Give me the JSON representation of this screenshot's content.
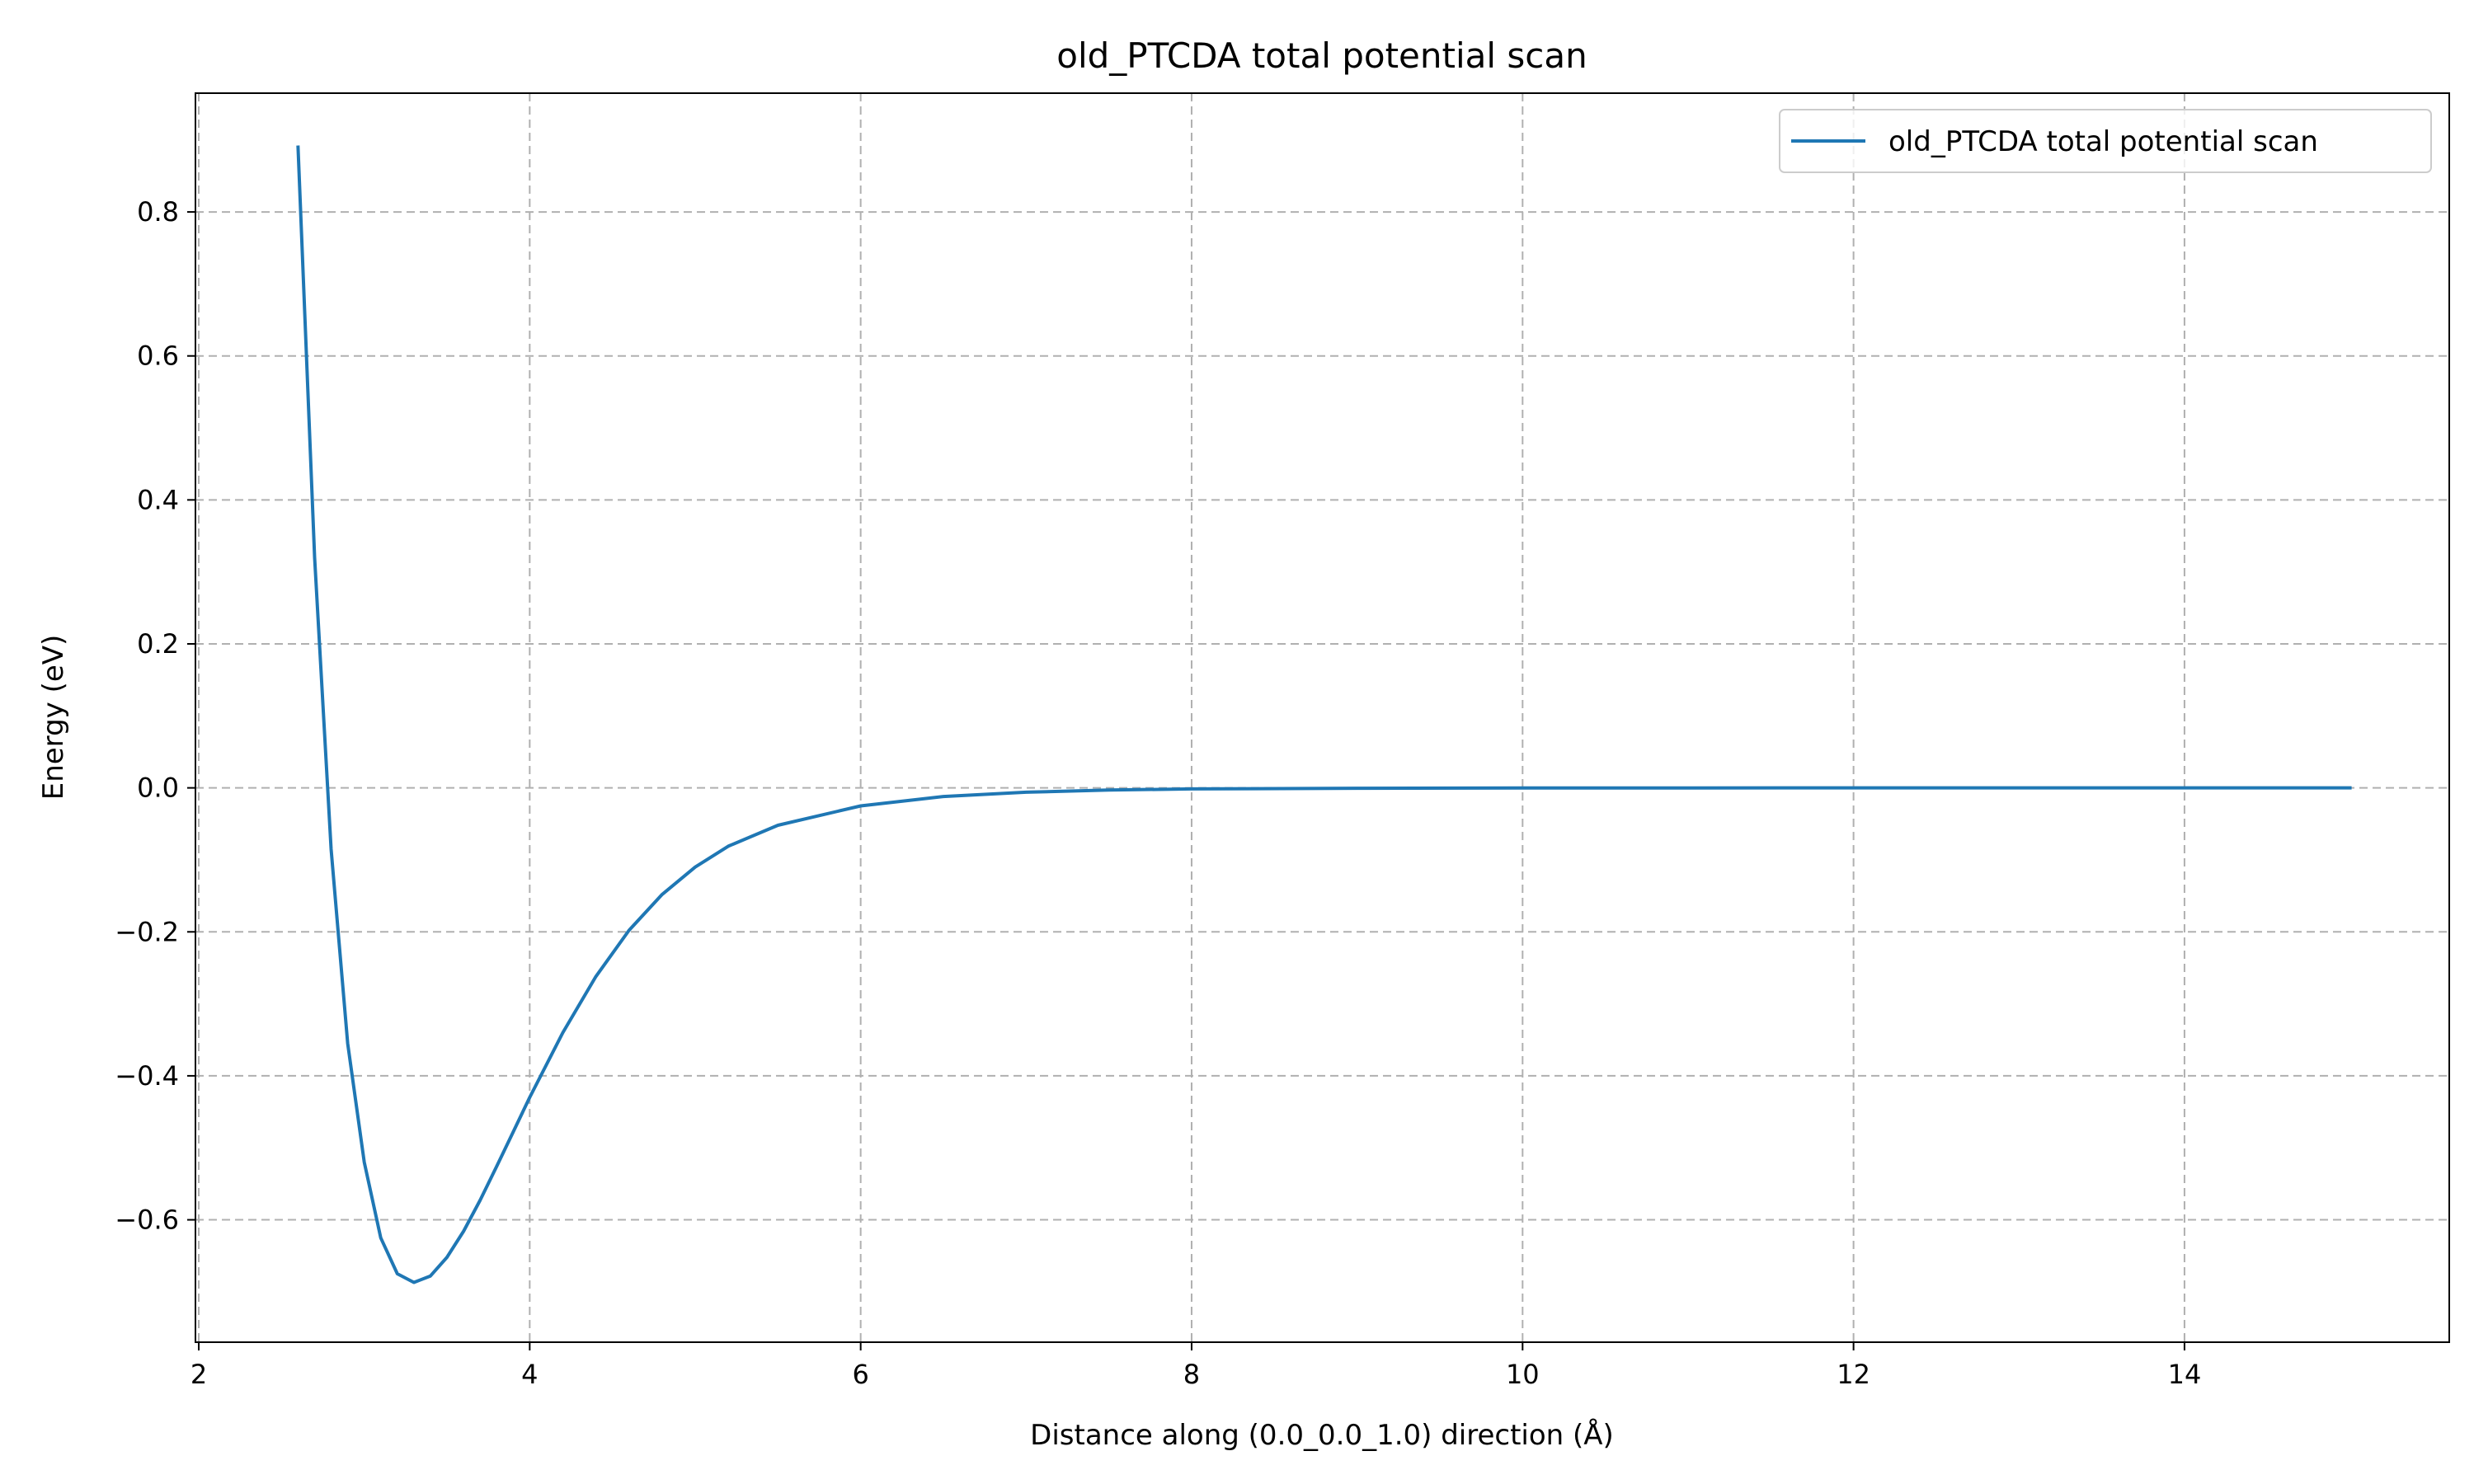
{
  "chart_data": {
    "type": "line",
    "title": "old_PTCDA total potential scan",
    "xlabel": "Distance along (0.0_0.0_1.0) direction (Å)",
    "ylabel": "Energy (eV)",
    "xlim": [
      1.98,
      15.6
    ],
    "ylim": [
      -0.77,
      0.965
    ],
    "xticks": [
      2,
      4,
      6,
      8,
      10,
      12,
      14
    ],
    "xtick_labels": [
      "2",
      "4",
      "6",
      "8",
      "10",
      "12",
      "14"
    ],
    "yticks": [
      -0.6,
      -0.4,
      -0.2,
      0.0,
      0.2,
      0.4,
      0.6,
      0.8
    ],
    "ytick_labels": [
      "−0.6",
      "−0.4",
      "−0.2",
      "0.0",
      "0.2",
      "0.4",
      "0.6",
      "0.8"
    ],
    "grid": true,
    "grid_style": "dashed",
    "legend_position": "top-right",
    "series": [
      {
        "name": "old_PTCDA total potential scan",
        "color": "#1f77b4",
        "x": [
          2.6,
          2.7,
          2.8,
          2.9,
          3.0,
          3.1,
          3.2,
          3.3,
          3.4,
          3.5,
          3.6,
          3.7,
          3.8,
          3.9,
          4.0,
          4.2,
          4.4,
          4.6,
          4.8,
          5.0,
          5.2,
          5.5,
          6.0,
          6.5,
          7.0,
          7.5,
          8.0,
          9.0,
          10.0,
          11.0,
          12.0,
          13.0,
          14.0,
          15.0
        ],
        "y": [
          0.89,
          0.32,
          -0.085,
          -0.355,
          -0.52,
          -0.625,
          -0.675,
          -0.687,
          -0.678,
          -0.652,
          -0.616,
          -0.573,
          -0.526,
          -0.478,
          -0.43,
          -0.34,
          -0.262,
          -0.198,
          -0.148,
          -0.11,
          -0.081,
          -0.052,
          -0.025,
          -0.012,
          -0.006,
          -0.003,
          -0.0015,
          -0.0005,
          -0.0002,
          -0.0001,
          0.0,
          0.0,
          0.0,
          0.0
        ]
      }
    ]
  }
}
